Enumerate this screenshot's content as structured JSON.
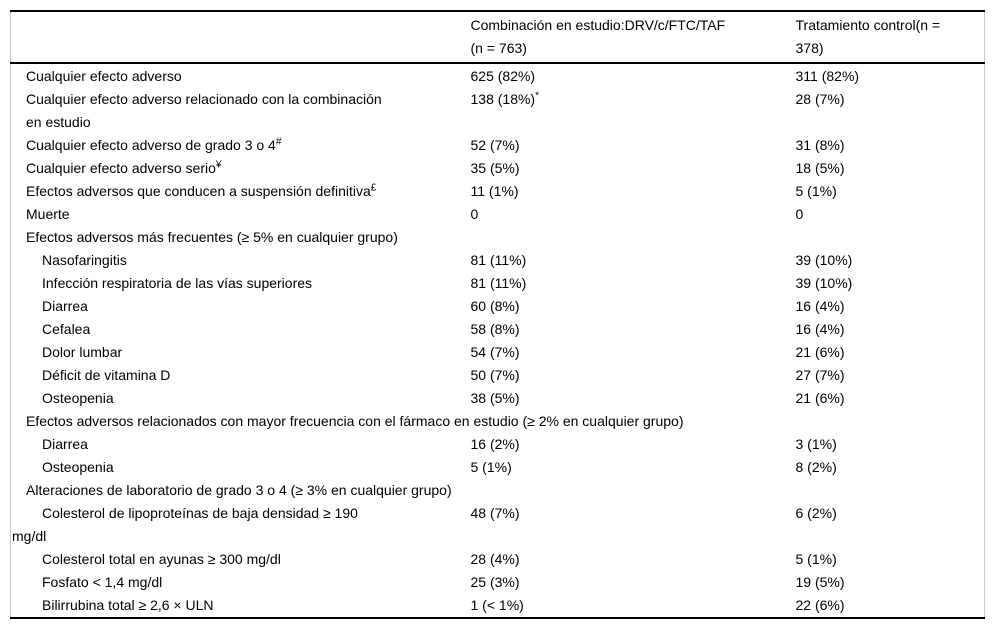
{
  "table": {
    "columns": [
      "",
      "Combinación en estudio:DRV/c/FTC/TAF\n(n = 763)",
      "Tratamiento control(n =\n378)"
    ],
    "rows": [
      {
        "label": "Cualquier efecto adverso",
        "indent": 0,
        "study": "625 (82%)",
        "control": "311 (82%)"
      },
      {
        "label": "Cualquier efecto adverso relacionado con la combinación\nen estudio",
        "indent": 0,
        "study": "138 (18%)",
        "study_sup": "*",
        "control": "28 (7%)"
      },
      {
        "label": "Cualquier efecto adverso de grado 3 o 4",
        "label_sup": "#",
        "indent": 0,
        "study": "52 (7%)",
        "control": "31 (8%)"
      },
      {
        "label": "Cualquier efecto adverso serio",
        "label_sup": "¥",
        "indent": 0,
        "study": "35 (5%)",
        "control": "18 (5%)"
      },
      {
        "label": "Efectos adversos que conducen a suspensión definitiva",
        "label_sup": "£",
        "indent": 0,
        "study": "11 (1%)",
        "control": "5 (1%)"
      },
      {
        "label": "Muerte",
        "indent": 0,
        "study": "0",
        "control": "0"
      },
      {
        "label": "Efectos adversos más frecuentes (≥ 5% en cualquier grupo)",
        "section": true
      },
      {
        "label": "Nasofaringitis",
        "indent": 1,
        "study": "81 (11%)",
        "control": "39 (10%)"
      },
      {
        "label": "Infección respiratoria de las vías superiores",
        "indent": 1,
        "study": "81 (11%)",
        "control": "39 (10%)"
      },
      {
        "label": "Diarrea",
        "indent": 1,
        "study": "60 (8%)",
        "control": "16 (4%)"
      },
      {
        "label": "Cefalea",
        "indent": 1,
        "study": "58 (8%)",
        "control": "16 (4%)"
      },
      {
        "label": "Dolor lumbar",
        "indent": 1,
        "study": "54 (7%)",
        "control": "21 (6%)"
      },
      {
        "label": "Déficit de vitamina D",
        "indent": 1,
        "study": "50 (7%)",
        "control": "27 (7%)"
      },
      {
        "label": "Osteopenia",
        "indent": 1,
        "study": "38 (5%)",
        "control": "21 (6%)"
      },
      {
        "label": "Efectos adversos relacionados con mayor frecuencia con el fármaco en estudio (≥ 2% en cualquier grupo)",
        "section": true
      },
      {
        "label": "Diarrea",
        "indent": 1,
        "study": "16 (2%)",
        "control": "3 (1%)"
      },
      {
        "label": "Osteopenia",
        "indent": 1,
        "study": "5 (1%)",
        "control": "8 (2%)"
      },
      {
        "label": "Alteraciones de laboratorio de grado 3 o 4 (≥ 3% en cualquier grupo)",
        "section": true
      },
      {
        "label": "Colesterol de lipoproteínas de baja densidad ≥ 190\nmg/dl",
        "indent": 1,
        "study": "48 (7%)",
        "control": "6 (2%)"
      },
      {
        "label": "Colesterol total en ayunas ≥ 300 mg/dl",
        "indent": 1,
        "study": "28 (4%)",
        "control": "5 (1%)"
      },
      {
        "label": "Fosfato < 1,4 mg/dl",
        "indent": 1,
        "study": "25 (3%)",
        "control": "19 (5%)"
      },
      {
        "label": "Bilirrubina total ≥ 2,6 × ULN",
        "indent": 1,
        "study": "1 (< 1%)",
        "control": "22 (6%)"
      }
    ]
  }
}
